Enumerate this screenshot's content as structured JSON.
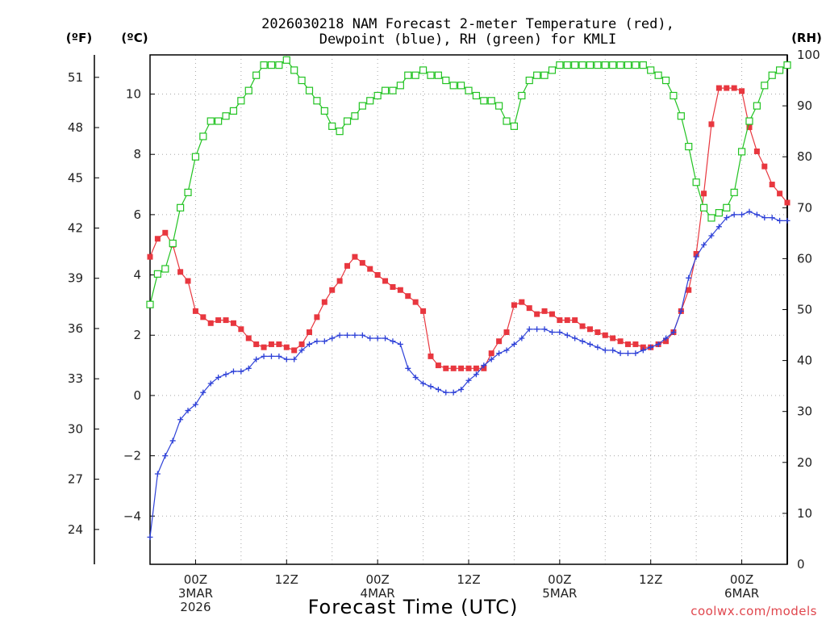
{
  "chart_data": {
    "type": "line",
    "title": "2026030218 NAM Forecast 2-meter Temperature (red),",
    "subtitle": "Dewpoint (blue), RH (green) for KMLI",
    "xlabel": "Forecast Time (UTC)",
    "credit": "coolwx.com/models",
    "axes": {
      "left_outer_unit": "(ºF)",
      "left_inner_unit": "(ºC)",
      "right_unit": "(RH)",
      "celsius_range": [
        -5.6,
        11.3
      ],
      "fahrenheit_ticks": [
        24,
        27,
        30,
        33,
        36,
        39,
        42,
        45,
        48,
        51
      ],
      "celsius_ticks": [
        -4,
        -2,
        0,
        2,
        4,
        6,
        8,
        10
      ],
      "rh_range": [
        0,
        100
      ],
      "rh_ticks": [
        0,
        10,
        20,
        30,
        40,
        50,
        60,
        70,
        80,
        90,
        100
      ],
      "x_range_hours": [
        0,
        84
      ],
      "grid": true
    },
    "x_ticks": [
      {
        "hour": 6,
        "lines": [
          "00Z",
          "3MAR",
          "2026"
        ]
      },
      {
        "hour": 18,
        "lines": [
          "12Z"
        ]
      },
      {
        "hour": 30,
        "lines": [
          "00Z",
          "4MAR"
        ]
      },
      {
        "hour": 42,
        "lines": [
          "12Z"
        ]
      },
      {
        "hour": 54,
        "lines": [
          "00Z",
          "5MAR"
        ]
      },
      {
        "hour": 66,
        "lines": [
          "12Z"
        ]
      },
      {
        "hour": 78,
        "lines": [
          "00Z",
          "6MAR"
        ]
      }
    ],
    "series": [
      {
        "name": "Temperature",
        "color": "#e8373f",
        "unit": "C",
        "marker": "square-filled",
        "x": [
          0,
          1,
          2,
          3,
          4,
          5,
          6,
          7,
          8,
          9,
          10,
          11,
          12,
          13,
          14,
          15,
          16,
          17,
          18,
          19,
          20,
          21,
          22,
          23,
          24,
          25,
          26,
          27,
          28,
          29,
          30,
          31,
          32,
          33,
          34,
          35,
          36,
          37,
          38,
          39,
          40,
          41,
          42,
          43,
          44,
          45,
          46,
          47,
          48,
          49,
          50,
          51,
          52,
          53,
          54,
          55,
          56,
          57,
          58,
          59,
          60,
          61,
          62,
          63,
          64,
          65,
          66,
          67,
          68,
          69,
          70,
          71,
          72,
          73,
          74,
          75,
          76,
          77,
          78,
          79,
          80,
          81,
          82,
          83,
          84
        ],
        "y": [
          4.6,
          5.2,
          5.4,
          5.0,
          4.1,
          3.8,
          2.8,
          2.6,
          2.4,
          2.5,
          2.5,
          2.4,
          2.2,
          1.9,
          1.7,
          1.6,
          1.7,
          1.7,
          1.6,
          1.5,
          1.7,
          2.1,
          2.6,
          3.1,
          3.5,
          3.8,
          4.3,
          4.6,
          4.4,
          4.2,
          4.0,
          3.8,
          3.6,
          3.5,
          3.3,
          3.1,
          2.8,
          1.3,
          1.0,
          0.9,
          0.9,
          0.9,
          0.9,
          0.9,
          0.9,
          1.4,
          1.8,
          2.1,
          3.0,
          3.1,
          2.9,
          2.7,
          2.8,
          2.7,
          2.5,
          2.5,
          2.5,
          2.3,
          2.2,
          2.1,
          2.0,
          1.9,
          1.8,
          1.7,
          1.7,
          1.6,
          1.6,
          1.7,
          1.8,
          2.1,
          2.8,
          3.5,
          4.7,
          6.7,
          9.0,
          10.2,
          10.2,
          10.2,
          10.1,
          8.9,
          8.1,
          7.6,
          7.0,
          6.7,
          6.4
        ]
      },
      {
        "name": "Dewpoint",
        "color": "#2e41d8",
        "unit": "C",
        "marker": "plus",
        "x": [
          0,
          1,
          2,
          3,
          4,
          5,
          6,
          7,
          8,
          9,
          10,
          11,
          12,
          13,
          14,
          15,
          16,
          17,
          18,
          19,
          20,
          21,
          22,
          23,
          24,
          25,
          26,
          27,
          28,
          29,
          30,
          31,
          32,
          33,
          34,
          35,
          36,
          37,
          38,
          39,
          40,
          41,
          42,
          43,
          44,
          45,
          46,
          47,
          48,
          49,
          50,
          51,
          52,
          53,
          54,
          55,
          56,
          57,
          58,
          59,
          60,
          61,
          62,
          63,
          64,
          65,
          66,
          67,
          68,
          69,
          70,
          71,
          72,
          73,
          74,
          75,
          76,
          77,
          78,
          79,
          80,
          81,
          82,
          83,
          84
        ],
        "y": [
          -4.7,
          -2.6,
          -2.0,
          -1.5,
          -0.8,
          -0.5,
          -0.3,
          0.1,
          0.4,
          0.6,
          0.7,
          0.8,
          0.8,
          0.9,
          1.2,
          1.3,
          1.3,
          1.3,
          1.2,
          1.2,
          1.5,
          1.7,
          1.8,
          1.8,
          1.9,
          2.0,
          2.0,
          2.0,
          2.0,
          1.9,
          1.9,
          1.9,
          1.8,
          1.7,
          0.9,
          0.6,
          0.4,
          0.3,
          0.2,
          0.1,
          0.1,
          0.2,
          0.5,
          0.7,
          1.0,
          1.2,
          1.4,
          1.5,
          1.7,
          1.9,
          2.2,
          2.2,
          2.2,
          2.1,
          2.1,
          2.0,
          1.9,
          1.8,
          1.7,
          1.6,
          1.5,
          1.5,
          1.4,
          1.4,
          1.4,
          1.5,
          1.6,
          1.7,
          1.9,
          2.1,
          2.8,
          3.9,
          4.6,
          5.0,
          5.3,
          5.6,
          5.9,
          6.0,
          6.0,
          6.1,
          6.0,
          5.9,
          5.9,
          5.8,
          5.8
        ]
      },
      {
        "name": "RH",
        "color": "#22c322",
        "unit": "%",
        "marker": "square-open",
        "x": [
          0,
          1,
          2,
          3,
          4,
          5,
          6,
          7,
          8,
          9,
          10,
          11,
          12,
          13,
          14,
          15,
          16,
          17,
          18,
          19,
          20,
          21,
          22,
          23,
          24,
          25,
          26,
          27,
          28,
          29,
          30,
          31,
          32,
          33,
          34,
          35,
          36,
          37,
          38,
          39,
          40,
          41,
          42,
          43,
          44,
          45,
          46,
          47,
          48,
          49,
          50,
          51,
          52,
          53,
          54,
          55,
          56,
          57,
          58,
          59,
          60,
          61,
          62,
          63,
          64,
          65,
          66,
          67,
          68,
          69,
          70,
          71,
          72,
          73,
          74,
          75,
          76,
          77,
          78,
          79,
          80,
          81,
          82,
          83,
          84
        ],
        "y": [
          51,
          57,
          58,
          63,
          70,
          73,
          80,
          84,
          87,
          87,
          88,
          89,
          91,
          93,
          96,
          98,
          98,
          98,
          99,
          97,
          95,
          93,
          91,
          89,
          86,
          85,
          87,
          88,
          90,
          91,
          92,
          93,
          93,
          94,
          96,
          96,
          97,
          96,
          96,
          95,
          94,
          94,
          93,
          92,
          91,
          91,
          90,
          87,
          86,
          92,
          95,
          96,
          96,
          97,
          98,
          98,
          98,
          98,
          98,
          98,
          98,
          98,
          98,
          98,
          98,
          98,
          97,
          96,
          95,
          92,
          88,
          82,
          75,
          70,
          68,
          69,
          70,
          73,
          81,
          87,
          90,
          94,
          96,
          97,
          98
        ]
      }
    ]
  }
}
